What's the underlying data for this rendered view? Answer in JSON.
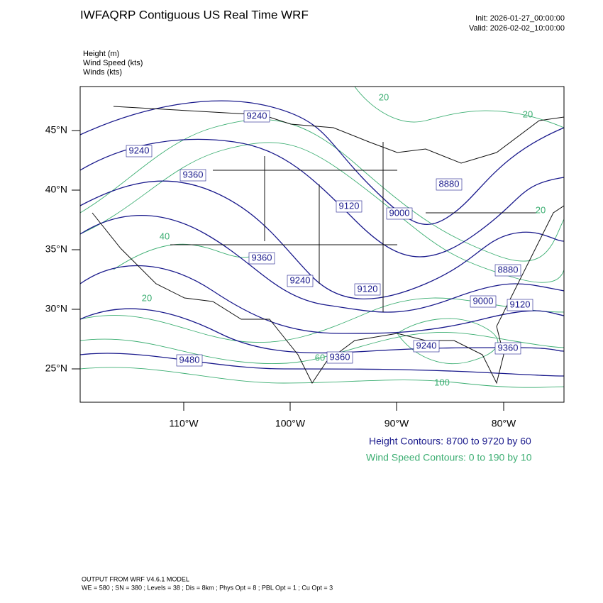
{
  "header": {
    "title": "IWFAQRP Contiguous US Real Time WRF",
    "init": "Init: 2026-01-27_00:00:00",
    "valid": "Valid: 2026-02-02_10:00:00"
  },
  "fields": [
    "Height   (m)",
    "Wind Speed   (kts)",
    "Winds   (kts)"
  ],
  "map": {
    "lat_labels": [
      "45°N",
      "40°N",
      "35°N",
      "30°N",
      "25°N"
    ],
    "lon_labels": [
      "110°W",
      "100°W",
      "90°W",
      "80°W"
    ],
    "height_labels": [
      "9240",
      "9240",
      "9360",
      "9120",
      "9000",
      "8880",
      "9360",
      "9240",
      "9120",
      "8880",
      "9000",
      "9120",
      "9240",
      "9360",
      "9480",
      "9360"
    ],
    "speed_labels": [
      "20",
      "20",
      "40",
      "20",
      "60",
      "100",
      "20"
    ]
  },
  "legend": {
    "height": "Height Contours: 8700 to 9720 by 60",
    "speed": "Wind Speed Contours: 0 to 190 by 10"
  },
  "footer": {
    "line1": "OUTPUT FROM WRF V4.6.1 MODEL",
    "line2": "WE = 580 ; SN = 380 ; Levels = 38 ; Dis = 8km ; Phys Opt = 8 ; PBL Opt = 1 ; Cu Opt = 3"
  }
}
